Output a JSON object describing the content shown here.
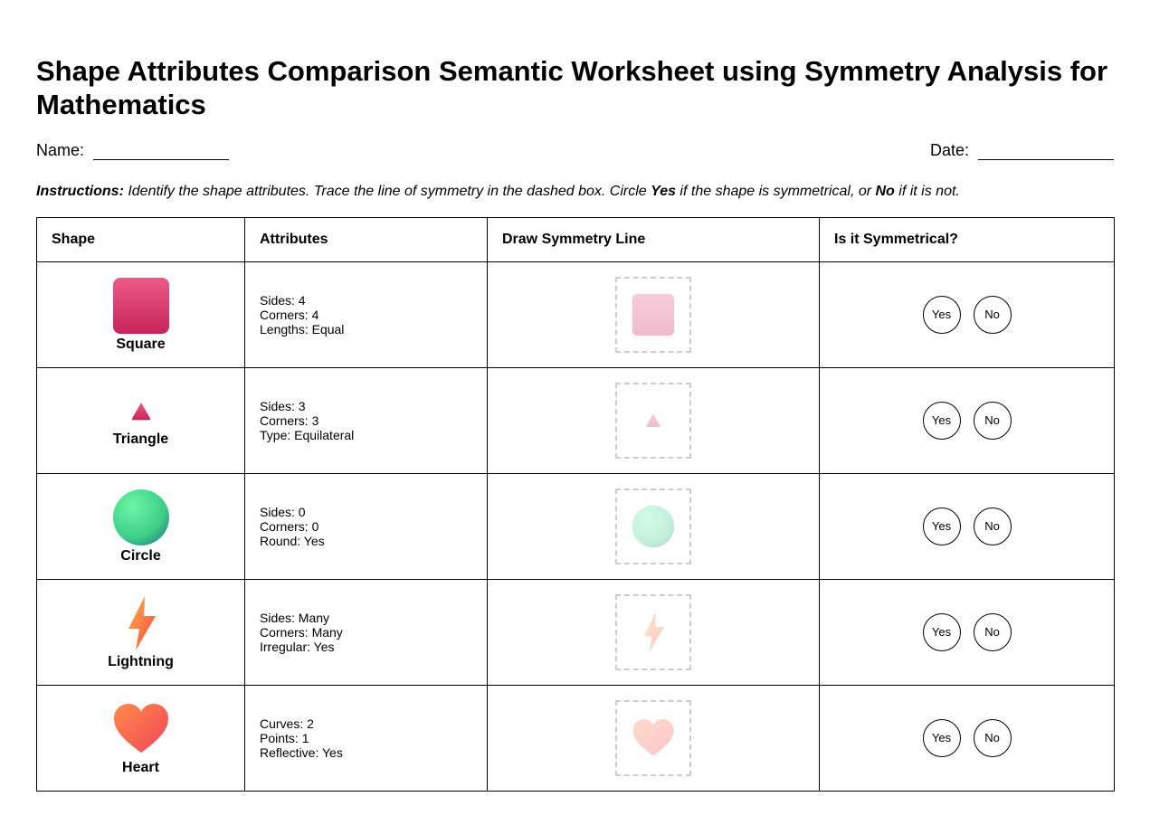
{
  "header": {
    "title": "Shape Attributes Comparison Semantic Worksheet using Symmetry Analysis for Mathematics",
    "name_label": "Name:",
    "date_label": "Date:"
  },
  "instructions": {
    "lead": "Instructions:",
    "part1": " Identify the shape attributes. Trace the line of symmetry in the dashed box. Circle ",
    "yes": "Yes",
    "part2": " if the shape is symmetrical, or ",
    "no": "No",
    "part3": " if it is not."
  },
  "table": {
    "headers": [
      "Shape",
      "Attributes",
      "Draw Symmetry Line",
      "Is it Symmetrical?"
    ],
    "options": [
      "Yes",
      "No"
    ],
    "rows": [
      {
        "shape": "Square",
        "attributes": [
          "Sides: 4",
          "Corners: 4",
          "Lengths: Equal"
        ]
      },
      {
        "shape": "Triangle",
        "attributes": [
          "Sides: 3",
          "Corners: 3",
          "Type: Equilateral"
        ]
      },
      {
        "shape": "Circle",
        "attributes": [
          "Sides: 0",
          "Corners: 0",
          "Round: Yes"
        ]
      },
      {
        "shape": "Lightning",
        "attributes": [
          "Sides: Many",
          "Corners: Many",
          "Irregular: Yes"
        ]
      },
      {
        "shape": "Heart",
        "attributes": [
          "Curves: 2",
          "Points: 1",
          "Reflective: Yes"
        ]
      }
    ]
  }
}
